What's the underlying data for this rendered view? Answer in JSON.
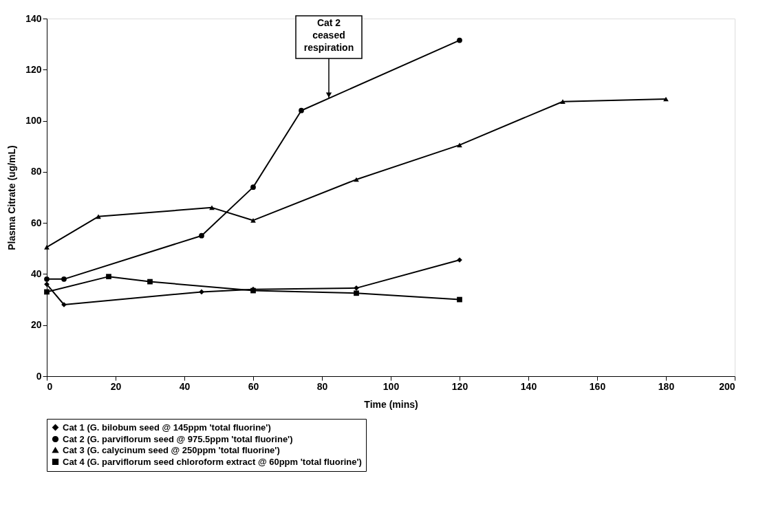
{
  "chart_data": {
    "type": "line",
    "xlabel": "Time (mins)",
    "ylabel": "Plasma Citrate (ug/mL)",
    "xlim": [
      0,
      200
    ],
    "xticks": [
      0,
      20,
      40,
      60,
      80,
      100,
      120,
      140,
      160,
      180,
      200
    ],
    "ylim": [
      0,
      140
    ],
    "yticks": [
      0,
      20,
      40,
      60,
      80,
      100,
      120,
      140
    ],
    "grid": false,
    "legend": "bottom",
    "line_style": "solid",
    "annotations": [
      {
        "text": "Cat 2\nceased\nrespiration",
        "x": 82,
        "y": 109
      }
    ],
    "series": [
      {
        "name": "Cat 1 (G. bilobum seed @ 145ppm 'total fluorine')",
        "color": "#000000",
        "marker": "diamond",
        "x": [
          0,
          5,
          45,
          60,
          90,
          120
        ],
        "values": [
          36,
          28,
          33,
          34,
          34.5,
          45.5
        ]
      },
      {
        "name": "Cat 2 (G. parviflorum seed @ 975.5ppm 'total fluorine')",
        "color": "#000000",
        "marker": "circle",
        "x": [
          0,
          5,
          45,
          60,
          74,
          120
        ],
        "values": [
          38,
          38,
          55,
          74,
          104,
          131.5
        ]
      },
      {
        "name": "Cat 3 (G. calycinum seed @ 250ppm 'total fluorine')",
        "color": "#000000",
        "marker": "triangle",
        "x": [
          0,
          15,
          48,
          60,
          90,
          120,
          150,
          180
        ],
        "values": [
          50.5,
          62.5,
          66,
          61,
          77,
          90.5,
          107.5,
          108.5
        ]
      },
      {
        "name": "Cat 4 (G. parviflorum seed chloroform extract @ 60ppm 'total fluorine')",
        "color": "#000000",
        "marker": "square",
        "x": [
          0,
          18,
          30,
          60,
          90,
          120
        ],
        "values": [
          33,
          39,
          37,
          33.5,
          32.5,
          30
        ]
      }
    ]
  }
}
